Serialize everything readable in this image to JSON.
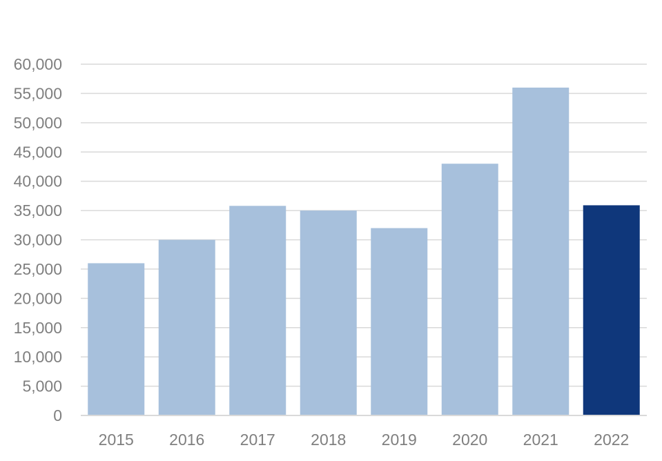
{
  "chart_data": {
    "type": "bar",
    "title": "",
    "xlabel": "",
    "ylabel": "",
    "categories": [
      "2015",
      "2016",
      "2017",
      "2018",
      "2019",
      "2020",
      "2021",
      "2022"
    ],
    "values": [
      26000,
      30000,
      35800,
      35000,
      32000,
      43000,
      56000,
      35900
    ],
    "ylim": [
      0,
      60000
    ],
    "yticks": [
      0,
      5000,
      10000,
      15000,
      20000,
      25000,
      30000,
      35000,
      40000,
      45000,
      50000,
      55000,
      60000
    ],
    "ytick_labels": [
      "0",
      "5,000",
      "10,000",
      "15,000",
      "20,000",
      "25,000",
      "30,000",
      "35,000",
      "40,000",
      "45,000",
      "50,000",
      "55,000",
      "60,000"
    ],
    "grid": true,
    "legend": "none",
    "colors": {
      "bar": "#a7c0dc",
      "bar_highlight": "#0f377b",
      "highlight_category": "2022",
      "grid": "#d9d9d9",
      "tick_text": "#7f7f7f"
    }
  }
}
